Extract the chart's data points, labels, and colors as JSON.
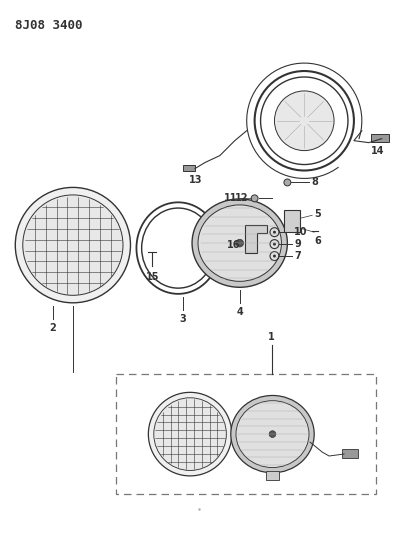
{
  "title": "8J08 3400",
  "bg_color": "#ffffff",
  "line_color": "#333333",
  "title_fontsize": 9,
  "label_fontsize": 7,
  "figsize": [
    3.99,
    5.33
  ],
  "dpi": 100
}
